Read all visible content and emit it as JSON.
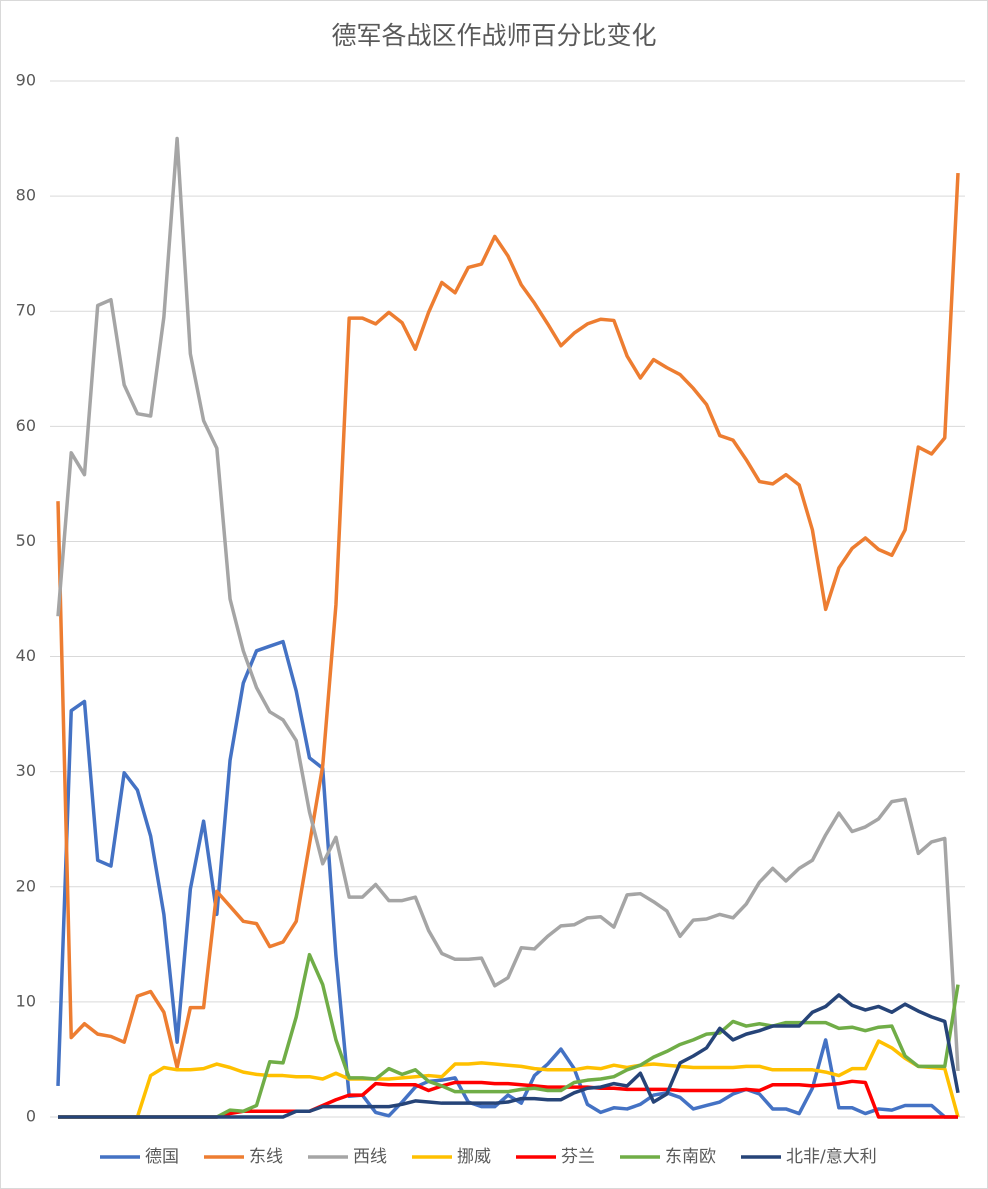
{
  "chart_data": {
    "type": "line",
    "title": "德军各战区作战师百分比变化",
    "categories": [
      null,
      null,
      null,
      null,
      null,
      null,
      null,
      null,
      null,
      null,
      null,
      null,
      null,
      null,
      null,
      null,
      null,
      null,
      null,
      null,
      null,
      null,
      null,
      null,
      null,
      null,
      null,
      null,
      null,
      null,
      null,
      null,
      null,
      null,
      null,
      null,
      null,
      null,
      null,
      null,
      null,
      null,
      null,
      null,
      null,
      null,
      null,
      null,
      null,
      null,
      null,
      null,
      null,
      null,
      null,
      null,
      null,
      null,
      null,
      null,
      null,
      null,
      null,
      null,
      null,
      null,
      null,
      null,
      null
    ],
    "ylim": [
      0,
      90
    ],
    "yticks": [
      0,
      10,
      20,
      30,
      40,
      50,
      60,
      70,
      80,
      90
    ],
    "grid": true,
    "legend": "bottom",
    "series": [
      {
        "name": "德国",
        "color": "#4472c4",
        "values": [
          2.7,
          35.3,
          36.1,
          22.3,
          21.8,
          29.9,
          28.4,
          24.4,
          17.6,
          6.5,
          19.8,
          25.7,
          17.6,
          31.0,
          37.7,
          40.5,
          40.9,
          41.3,
          37.0,
          31.2,
          30.3,
          14,
          1.8,
          1.9,
          0.4,
          0.1,
          1.3,
          2.6,
          3.1,
          3.2,
          3.4,
          1.3,
          0.9,
          0.9,
          1.9,
          1.2,
          3.6,
          4.6,
          5.9,
          4.2,
          1.1,
          0.4,
          0.8,
          0.7,
          1.1,
          1.9,
          2.1,
          1.7,
          0.7,
          1.0,
          1.3,
          2.0,
          2.4,
          2.0,
          0.7,
          0.7,
          0.3,
          2.5,
          6.7,
          0.8,
          0.8,
          0.3,
          0.7,
          0.6,
          1.0,
          1.0,
          1.0,
          0,
          0
        ]
      },
      {
        "name": "东线",
        "color": "#ed7d31",
        "values": [
          53.5,
          6.9,
          8.1,
          7.2,
          7.0,
          6.5,
          10.5,
          10.9,
          9.1,
          4.3,
          9.5,
          9.5,
          19.6,
          18.3,
          17.0,
          16.8,
          14.8,
          15.2,
          17.0,
          23.7,
          30.5,
          44.5,
          69.4,
          69.4,
          68.9,
          69.9,
          69.0,
          66.7,
          69.9,
          72.5,
          71.6,
          73.8,
          74.1,
          76.5,
          74.8,
          72.3,
          70.7,
          68.9,
          67.0,
          68.1,
          68.9,
          69.3,
          69.2,
          66.1,
          64.2,
          65.8,
          65.1,
          64.5,
          63.3,
          61.9,
          59.2,
          58.8,
          57.1,
          55.2,
          55.0,
          55.8,
          54.9,
          51.0,
          44.1,
          47.7,
          49.4,
          50.3,
          49.3,
          48.8,
          51.0,
          58.2,
          57.6,
          59.0,
          82.0
        ]
      },
      {
        "name": "西线",
        "color": "#a5a5a5",
        "values": [
          43.5,
          57.7,
          55.8,
          70.5,
          71,
          63.6,
          61.1,
          60.9,
          69.5,
          85,
          66.3,
          60.5,
          58.1,
          45,
          40.5,
          37.3,
          35.2,
          34.5,
          32.7,
          26.5,
          22,
          24.3,
          19.1,
          19.1,
          20.2,
          18.8,
          18.8,
          19.1,
          16.2,
          14.2,
          13.7,
          13.7,
          13.8,
          11.4,
          12.1,
          14.7,
          14.6,
          15.7,
          16.6,
          16.7,
          17.3,
          17.4,
          16.5,
          19.3,
          19.4,
          18.7,
          17.9,
          15.7,
          17.1,
          17.2,
          17.6,
          17.3,
          18.5,
          20.4,
          21.6,
          20.5,
          21.6,
          22.3,
          24.5,
          26.4,
          24.8,
          25.2,
          25.9,
          27.4,
          27.6,
          22.9,
          23.9,
          24.2,
          4
        ]
      },
      {
        "name": "挪威",
        "color": "#ffc000",
        "values": [
          0,
          0,
          0,
          0,
          0,
          0,
          0,
          3.6,
          4.3,
          4.1,
          4.1,
          4.2,
          4.6,
          4.3,
          3.9,
          3.7,
          3.6,
          3.6,
          3.5,
          3.5,
          3.3,
          3.8,
          3.3,
          3.3,
          3.3,
          3.3,
          3.4,
          3.5,
          3.6,
          3.5,
          4.6,
          4.6,
          4.7,
          4.6,
          4.5,
          4.4,
          4.2,
          4.1,
          4.1,
          4.1,
          4.3,
          4.2,
          4.5,
          4.3,
          4.5,
          4.6,
          4.5,
          4.4,
          4.3,
          4.3,
          4.3,
          4.3,
          4.4,
          4.4,
          4.1,
          4.1,
          4.1,
          4.1,
          3.9,
          3.6,
          4.2,
          4.2,
          6.6,
          6.0,
          5.1,
          4.4,
          4.3,
          4.2,
          0
        ]
      },
      {
        "name": "芬兰",
        "color": "#ff0000",
        "values": [
          0,
          0,
          0,
          0,
          0,
          0,
          0,
          0,
          0,
          0,
          0,
          0,
          0,
          0.3,
          0.5,
          0.5,
          0.5,
          0.5,
          0.5,
          0.5,
          1.0,
          1.5,
          1.9,
          1.9,
          2.9,
          2.8,
          2.8,
          2.8,
          2.3,
          2.7,
          3.0,
          3.0,
          3.0,
          2.9,
          2.9,
          2.8,
          2.7,
          2.6,
          2.6,
          2.6,
          2.6,
          2.5,
          2.5,
          2.4,
          2.4,
          2.4,
          2.4,
          2.3,
          2.3,
          2.3,
          2.3,
          2.3,
          2.4,
          2.3,
          2.8,
          2.8,
          2.8,
          2.7,
          2.8,
          2.9,
          3.1,
          3.0,
          0,
          0,
          0,
          0,
          0,
          0,
          0
        ]
      },
      {
        "name": "东南欧",
        "color": "#70ad47",
        "values": [
          0,
          0,
          0,
          0,
          0,
          0,
          0,
          0,
          0,
          0,
          0,
          0,
          0,
          0.6,
          0.5,
          1.0,
          4.8,
          4.7,
          8.7,
          14.1,
          11.5,
          6.7,
          3.4,
          3.4,
          3.3,
          4.2,
          3.7,
          4.1,
          3.1,
          2.7,
          2.2,
          2.2,
          2.2,
          2.2,
          2.2,
          2.4,
          2.5,
          2.3,
          2.3,
          3.0,
          3.2,
          3.3,
          3.5,
          4.1,
          4.5,
          5.2,
          5.7,
          6.3,
          6.7,
          7.2,
          7.3,
          8.3,
          7.9,
          8.1,
          7.9,
          8.2,
          8.2,
          8.2,
          8.2,
          7.7,
          7.8,
          7.5,
          7.8,
          7.9,
          5.3,
          4.4,
          4.4,
          4.4,
          11.5
        ]
      },
      {
        "name": "北非/意大利",
        "color": "#264478",
        "values": [
          0,
          0,
          0,
          0,
          0,
          0,
          0,
          0,
          0,
          0,
          0,
          0,
          0,
          0,
          0,
          0,
          0,
          0,
          0.5,
          0.5,
          0.9,
          0.9,
          0.9,
          0.9,
          0.9,
          0.9,
          1.1,
          1.4,
          1.3,
          1.2,
          1.2,
          1.2,
          1.2,
          1.2,
          1.3,
          1.6,
          1.6,
          1.5,
          1.5,
          2.1,
          2.5,
          2.6,
          2.9,
          2.7,
          3.8,
          1.3,
          2.0,
          4.7,
          5.3,
          6.0,
          7.7,
          6.7,
          7.2,
          7.5,
          7.9,
          7.9,
          7.9,
          9.1,
          9.6,
          10.6,
          9.7,
          9.3,
          9.6,
          9.1,
          9.8,
          9.2,
          8.7,
          8.3,
          2.1
        ]
      }
    ]
  }
}
